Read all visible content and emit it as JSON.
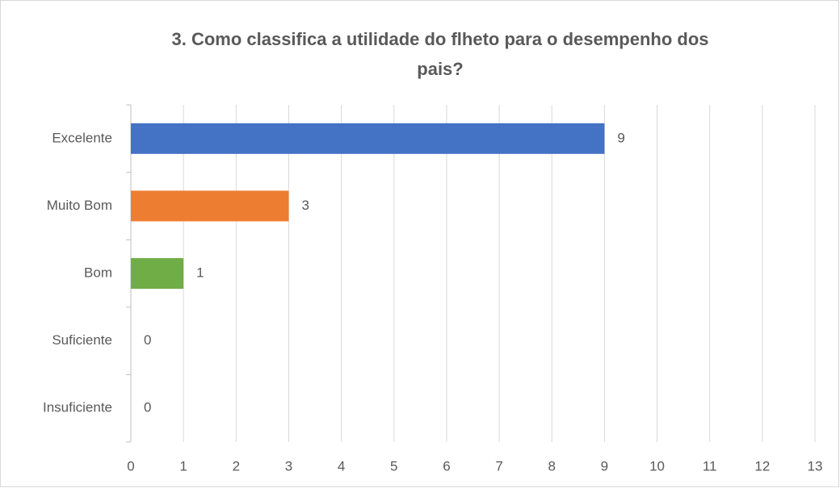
{
  "chart_data": {
    "type": "barh",
    "title": [
      "3. Como classifica a utilidade do flheto para o desempenho dos",
      "pais?"
    ],
    "categories": [
      "Excelente",
      "Muito Bom",
      "Bom",
      "Suficiente",
      "Insuficiente"
    ],
    "values": [
      9,
      3,
      1,
      0,
      0
    ],
    "colors": [
      "#4472c4",
      "#ed7d31",
      "#70ad47",
      "#ffc000",
      "#5b9bd5"
    ],
    "xlim": [
      0,
      13
    ],
    "xticks": [
      0,
      1,
      2,
      3,
      4,
      5,
      6,
      7,
      8,
      9,
      10,
      11,
      12,
      13
    ],
    "grid": true
  }
}
